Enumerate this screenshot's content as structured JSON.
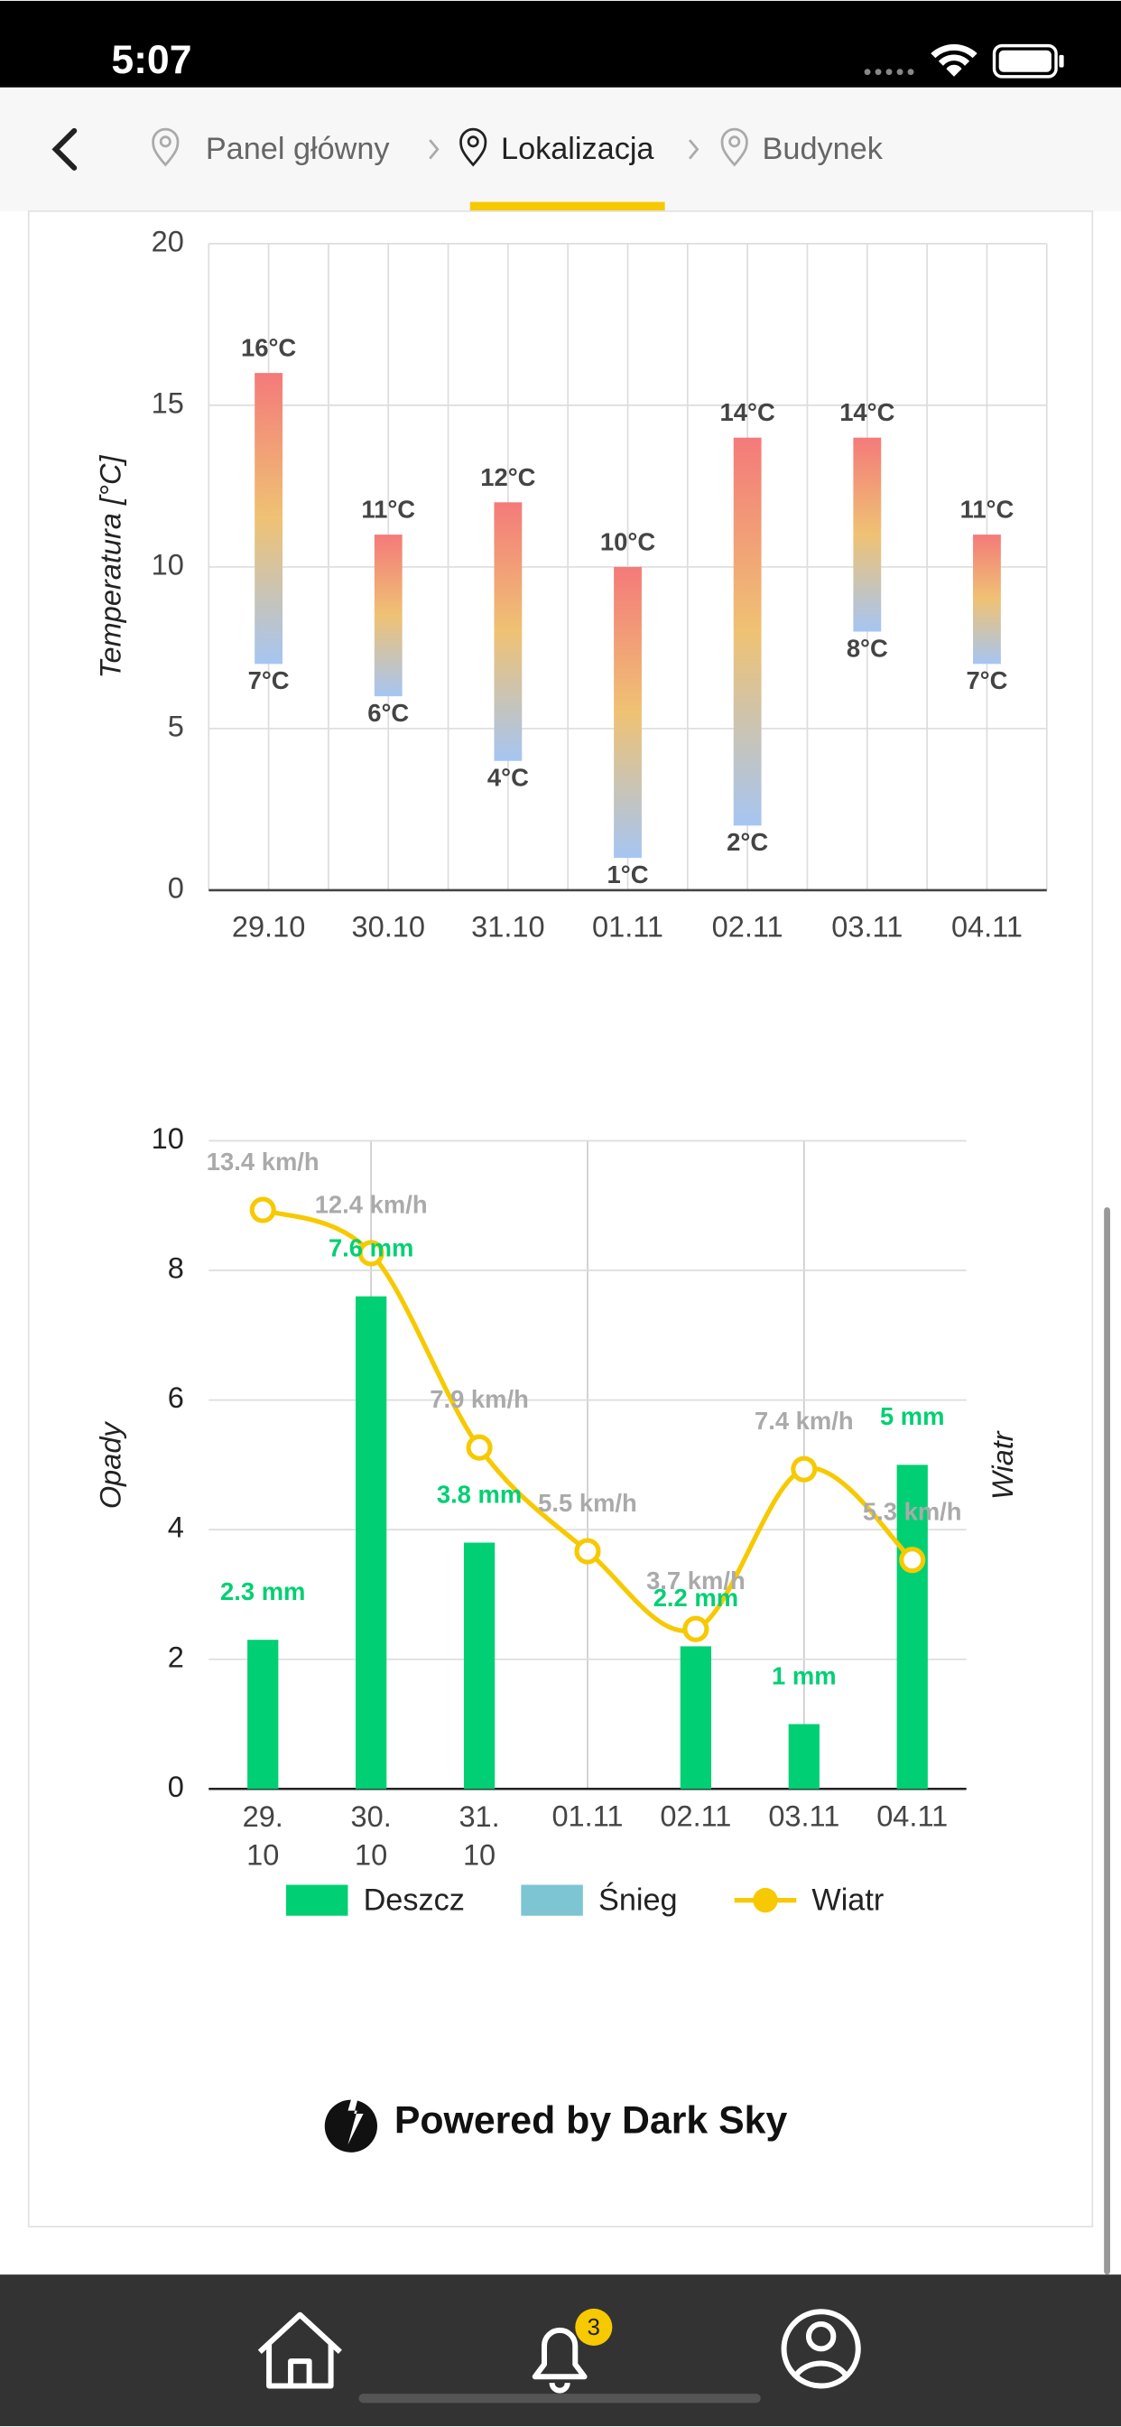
{
  "status_bar": {
    "time": "5:07"
  },
  "breadcrumb": [
    "Panel główny",
    "Lokalizacja",
    "Budynek"
  ],
  "chart_data": [
    {
      "type": "range_bar",
      "ylabel": "Temperatura [°C]",
      "categories": [
        "29.10",
        "30.10",
        "31.10",
        "01.11",
        "02.11",
        "03.11",
        "04.11"
      ],
      "series": [
        {
          "values": [
            7,
            6,
            4,
            1,
            2,
            8,
            7
          ],
          "value_labels": [
            "7°C",
            "6°C",
            "4°C",
            "1°C",
            "2°C",
            "8°C",
            "7°C"
          ]
        },
        {
          "values": [
            16,
            11,
            12,
            10,
            14,
            14,
            11
          ],
          "value_labels": [
            "16°C",
            "11°C",
            "12°C",
            "10°C",
            "14°C",
            "14°C",
            "11°C"
          ]
        }
      ],
      "gradient": [
        "#f47a7a",
        "#efc274",
        "#a6c5f2"
      ],
      "ylim": [
        0,
        20
      ],
      "yticks": [
        0,
        5,
        10,
        15,
        20
      ],
      "grid": true
    },
    {
      "type": "bar_line",
      "ylabel": "Opady",
      "y2label": "Wiatr",
      "categories": [
        "29.\n10",
        "30.\n10",
        "31.\n10",
        "01.11",
        "02.11",
        "03.11",
        "04.11"
      ],
      "series": [
        {
          "name": "Deszcz",
          "color": "#00d073",
          "values": [
            2.3,
            7.6,
            3.8,
            null,
            2.2,
            1,
            5
          ],
          "value_labels": [
            "2.3 mm",
            "7.6 mm",
            "3.8 mm",
            null,
            "2.2 mm",
            "1 mm",
            "5 mm"
          ]
        },
        {
          "name": "Śnieg",
          "color": "#7ec5d4",
          "values": [
            null,
            null,
            null,
            null,
            null,
            null,
            null
          ]
        },
        {
          "name": "Wiatr",
          "color": "#f7c900",
          "axis": "y2",
          "values": [
            13.4,
            12.4,
            7.9,
            5.5,
            3.7,
            7.4,
            5.3
          ],
          "value_labels": [
            "13.4 km/h",
            "12.4 km/h",
            "7.9 km/h",
            "5.5 km/h",
            "3.7 km/h",
            "7.4 km/h",
            "5.3 km/h"
          ]
        }
      ],
      "ylim": [
        0,
        10
      ],
      "yticks": [
        0,
        2,
        4,
        6,
        8,
        10
      ],
      "y2lim": [
        0,
        15
      ],
      "grid": true,
      "legend": "bottom"
    }
  ],
  "footer": {
    "powered": "Powered by Dark Sky",
    "badge": "3"
  }
}
